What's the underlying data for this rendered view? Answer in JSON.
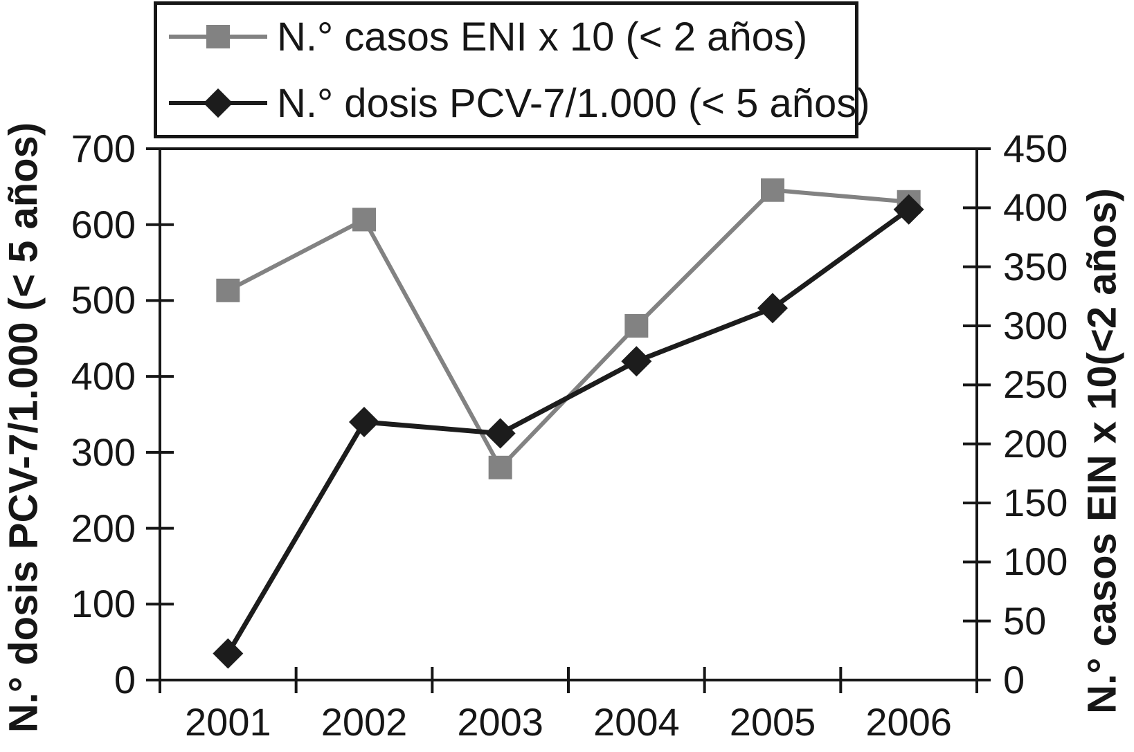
{
  "legend": {
    "items": [
      {
        "label": "N.° casos ENI x 10 (< 2 años)",
        "marker": "square",
        "color": "#828282"
      },
      {
        "label": "N.° dosis PCV-7/1.000 (< 5 años)",
        "marker": "diamond",
        "color": "#1c1c1c"
      }
    ]
  },
  "chart_data": {
    "type": "line",
    "title": "",
    "x_labels": [
      "2001",
      "2002",
      "2003",
      "2004",
      "2005",
      "2006"
    ],
    "series": [
      {
        "name": "N.° casos ENI x 10 (< 2 años)",
        "axis": "right",
        "marker": "square",
        "color": "#828282",
        "values": [
          330,
          390,
          180,
          300,
          415,
          405
        ]
      },
      {
        "name": "N.° dosis PCV-7/1.000 (< 5 años)",
        "axis": "left",
        "marker": "diamond",
        "color": "#1c1c1c",
        "values": [
          35,
          340,
          325,
          420,
          490,
          620
        ]
      }
    ],
    "left_axis": {
      "label": "N.° dosis PCV-7/1.000 (< 5 años)",
      "min": 0,
      "max": 700,
      "ticks": [
        0,
        100,
        200,
        300,
        400,
        500,
        600,
        700
      ]
    },
    "right_axis": {
      "label": "N.° casos EIN x 10(<2 años)",
      "min": 0,
      "max": 450,
      "ticks": [
        0,
        50,
        100,
        150,
        200,
        250,
        300,
        350,
        400,
        450
      ]
    },
    "grid": false,
    "legend_position": "top-left",
    "frame": true
  }
}
